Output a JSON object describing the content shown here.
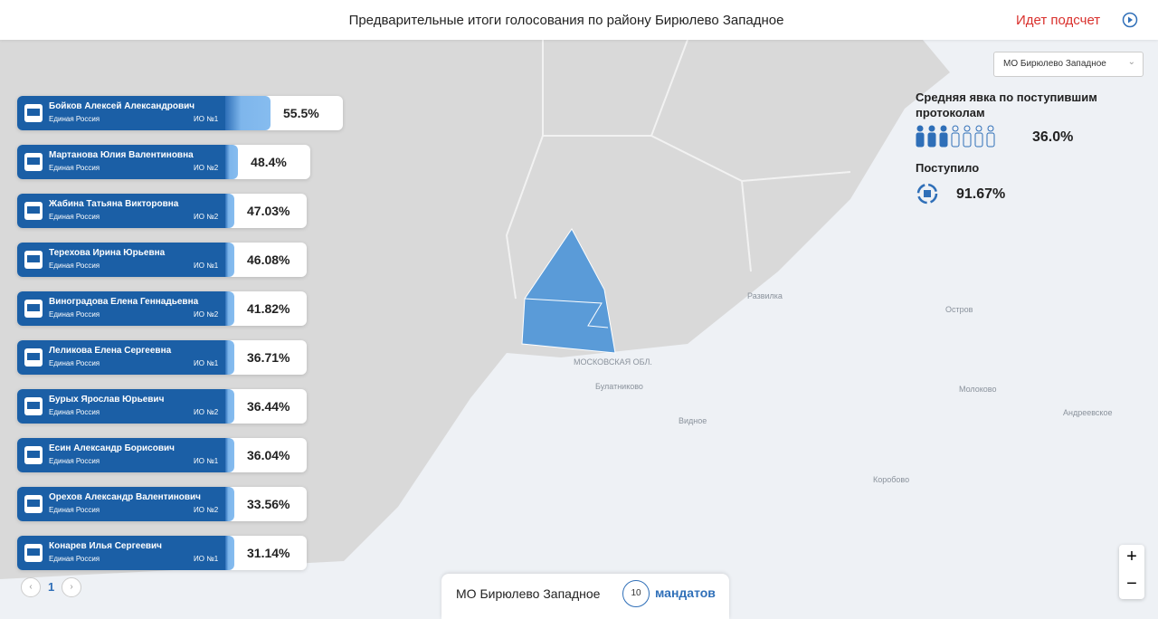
{
  "header": {
    "title": "Предварительные итоги голосования по району Бирюлево Западное",
    "status": "Идет подсчет"
  },
  "district_select": "МО Бирюлево Западное",
  "turnout": {
    "label": "Средняя явка по поступившим протоколам",
    "value": "36.0%"
  },
  "received": {
    "label": "Поступило",
    "value": "91.67%"
  },
  "candidates": [
    {
      "name": "Бойков Алексей Александрович",
      "party": "Единая Россия",
      "district": "ИО №1",
      "pct": 55.5,
      "pct_label": "55.5%"
    },
    {
      "name": "Мартанова Юлия Валентиновна",
      "party": "Единая Россия",
      "district": "ИО №2",
      "pct": 48.4,
      "pct_label": "48.4%"
    },
    {
      "name": "Жабина Татьяна Викторовна",
      "party": "Единая Россия",
      "district": "ИО №2",
      "pct": 47.03,
      "pct_label": "47.03%"
    },
    {
      "name": "Терехова Ирина Юрьевна",
      "party": "Единая Россия",
      "district": "ИО №1",
      "pct": 46.08,
      "pct_label": "46.08%"
    },
    {
      "name": "Виноградова Елена Геннадьевна",
      "party": "Единая Россия",
      "district": "ИО №2",
      "pct": 41.82,
      "pct_label": "41.82%"
    },
    {
      "name": "Леликова Елена Сергеевна",
      "party": "Единая Россия",
      "district": "ИО №1",
      "pct": 36.71,
      "pct_label": "36.71%"
    },
    {
      "name": "Бурых Ярослав Юрьевич",
      "party": "Единая Россия",
      "district": "ИО №2",
      "pct": 36.44,
      "pct_label": "36.44%"
    },
    {
      "name": "Есин Александр Борисович",
      "party": "Единая Россия",
      "district": "ИО №1",
      "pct": 36.04,
      "pct_label": "36.04%"
    },
    {
      "name": "Орехов Александр Валентинович",
      "party": "Единая Россия",
      "district": "ИО №2",
      "pct": 33.56,
      "pct_label": "33.56%"
    },
    {
      "name": "Конарев Илья Сергеевич",
      "party": "Единая Россия",
      "district": "ИО №1",
      "pct": 31.14,
      "pct_label": "31.14%"
    }
  ],
  "pagination": {
    "page": "1"
  },
  "footer": {
    "district": "МО Бирюлево Западное",
    "mandates": "10",
    "mandates_label": "мандатов"
  },
  "map_labels": [
    "МОСКОВСКАЯ ОБЛ.",
    "Развилка",
    "Видное",
    "Молоково",
    "Остров",
    "Коробово",
    "Булатниково",
    "Андреевское"
  ],
  "zoom": {
    "in": "+",
    "out": "−"
  }
}
